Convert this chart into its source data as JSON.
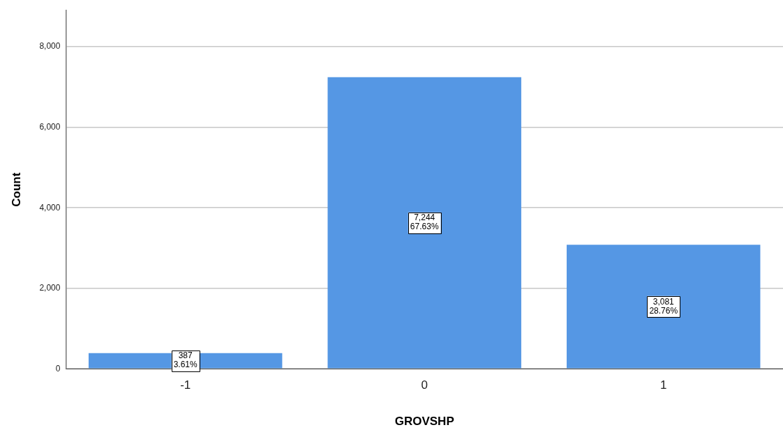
{
  "chart_data": {
    "type": "bar",
    "xlabel": "GROVSHP",
    "ylabel": "Count",
    "categories": [
      "-1",
      "0",
      "1"
    ],
    "values": [
      387,
      7244,
      3081
    ],
    "value_labels": [
      "387\n3.61%",
      "7,244\n67.63%",
      "3,081\n28.76%"
    ],
    "color": "#5597e4",
    "ylim": [
      0,
      8900
    ],
    "yticks": [
      {
        "value": 0,
        "label": "0"
      },
      {
        "value": 2000,
        "label": "2,000"
      },
      {
        "value": 4000,
        "label": "4,000"
      },
      {
        "value": 6000,
        "label": "6,000"
      },
      {
        "value": 8000,
        "label": "8,000"
      }
    ],
    "grid": "y",
    "legend": false
  }
}
